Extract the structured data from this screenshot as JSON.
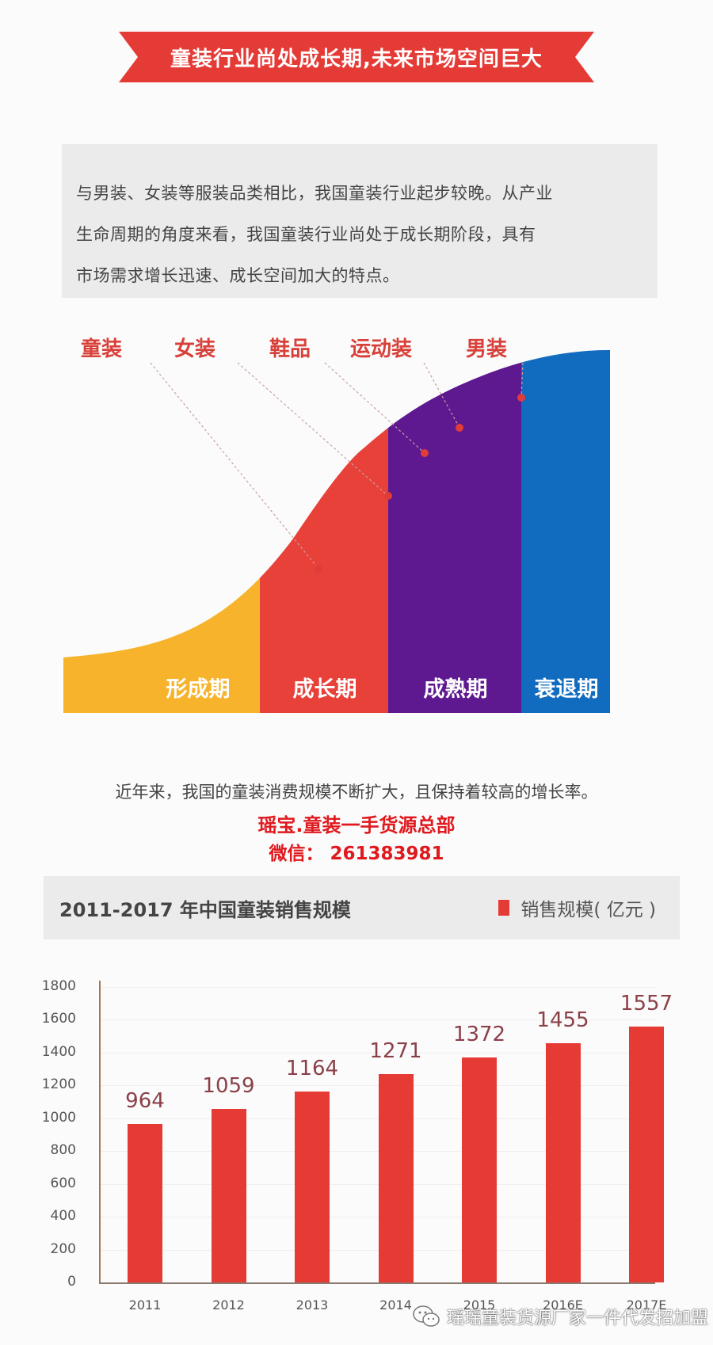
{
  "banner": {
    "title": "童装行业尚处成长期,未来市场空间巨大"
  },
  "intro": {
    "lines": [
      "与男装、女装等服装品类相比，我国童装行业起步较晚。从产业",
      "生命周期的角度来看，我国童装行业尚处于成长期阶段，具有",
      "市场需求增长迅速、成长空间加大的特点。"
    ]
  },
  "lifecycle": {
    "categories": [
      "童装",
      "女装",
      "鞋品",
      "运动装",
      "男装"
    ],
    "stages": [
      "形成期",
      "成长期",
      "成熟期",
      "衰退期"
    ],
    "colors": {
      "formation": "#f7b32b",
      "growth": "#e8413a",
      "maturity": "#5e1990",
      "decline": "#116bbf"
    }
  },
  "growth_text": "近年来，我国的童装消费规模不断扩大，且保持着较高的增长率。",
  "promo": {
    "line1": "瑶宝.童装一手货源总部",
    "line2": "微信：  261383981"
  },
  "chart_header": {
    "title": "2011-2017 年中国童装销售规模",
    "legend": "销售规模( 亿元 )"
  },
  "chart_data": {
    "type": "bar",
    "title": "2011-2017 年中国童装销售规模",
    "categories": [
      "2011",
      "2012",
      "2013",
      "2014",
      "2015",
      "2016E",
      "2017E"
    ],
    "series": [
      {
        "name": "销售规模(亿元)",
        "values": [
          964,
          1059,
          1164,
          1271,
          1372,
          1455,
          1557
        ],
        "color": "#e63a35"
      }
    ],
    "xlabel": "",
    "ylabel": "",
    "ylim": [
      0,
      1800
    ],
    "yticks": [
      "1800",
      "1600",
      "1400",
      "1200",
      "1000",
      "800",
      "600",
      "400",
      "200",
      "0"
    ],
    "grid": true,
    "legend_position": "top-right"
  },
  "watermark": {
    "text": "瑶瑶童装货源厂家一件代发招加盟"
  }
}
